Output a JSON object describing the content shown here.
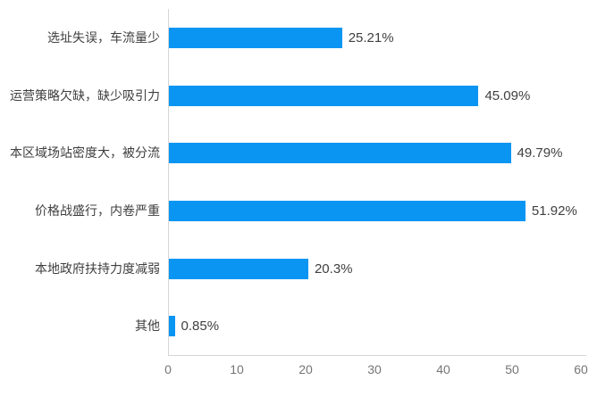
{
  "chart_data": {
    "type": "bar",
    "orientation": "horizontal",
    "title": "",
    "xlabel": "",
    "ylabel": "",
    "categories": [
      "选址失误，车流量少",
      "运营策略欠缺，缺少吸引力",
      "本区域场站密度大，被分流",
      "价格战盛行，内卷严重",
      "本地政府扶持力度减弱",
      "其他"
    ],
    "values": [
      25.21,
      45.09,
      49.79,
      51.92,
      20.3,
      0.85
    ],
    "value_labels": [
      "25.21%",
      "45.09%",
      "49.79%",
      "51.92%",
      "20.3%",
      "0.85%"
    ],
    "xlim": [
      0,
      60
    ],
    "x_ticks": [
      "0",
      "10",
      "20",
      "30",
      "40",
      "50",
      "60"
    ],
    "grid": false,
    "legend": false,
    "colors": {
      "bar": "#0A95F3",
      "axis_line": "#D6D6D6",
      "tick_label": "#757575",
      "category_label": "#3F3F3F",
      "value_label": "#404040"
    }
  }
}
